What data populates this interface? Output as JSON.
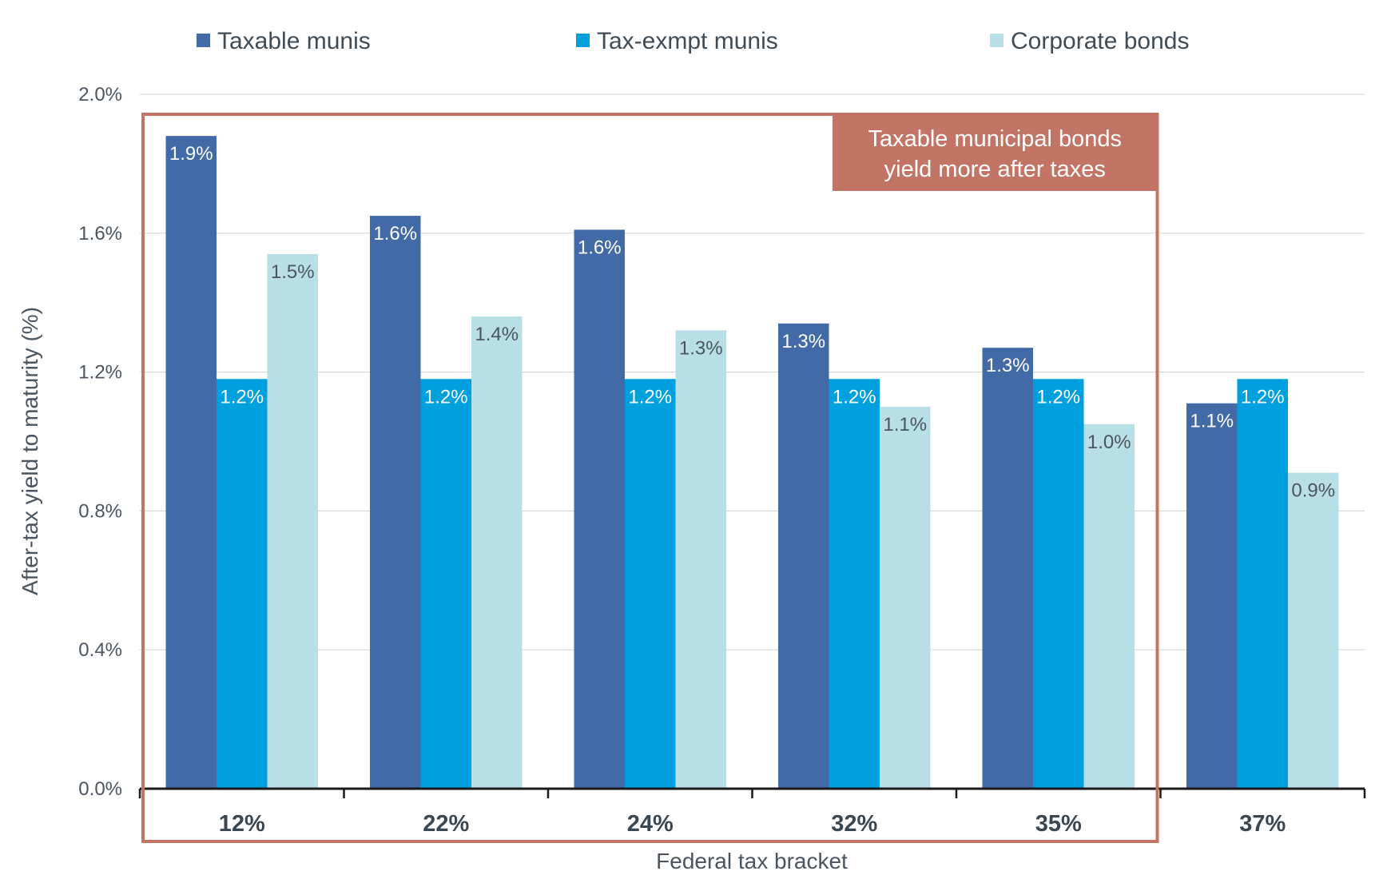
{
  "chart_data": {
    "type": "bar",
    "xlabel": "Federal tax bracket",
    "ylabel": "After-tax yield to maturity (%)",
    "ylim": [
      0,
      2.0
    ],
    "yticks": [
      "0.0%",
      "0.4%",
      "0.8%",
      "1.2%",
      "1.6%",
      "2.0%"
    ],
    "grid": true,
    "legend": "top",
    "categories": [
      "12%",
      "22%",
      "24%",
      "32%",
      "35%",
      "37%"
    ],
    "series": [
      {
        "name": "Taxable munis",
        "color": "#416aa6",
        "label_color": "#ffffff",
        "values": [
          1.88,
          1.65,
          1.61,
          1.34,
          1.27,
          1.11
        ],
        "labels": [
          "1.9%",
          "1.6%",
          "1.6%",
          "1.3%",
          "1.3%",
          "1.1%"
        ]
      },
      {
        "name": "Tax-exmpt munis",
        "color": "#00a0df",
        "label_color": "#ffffff",
        "values": [
          1.18,
          1.18,
          1.18,
          1.18,
          1.18,
          1.18
        ],
        "labels": [
          "1.2%",
          "1.2%",
          "1.2%",
          "1.2%",
          "1.2%",
          "1.2%"
        ]
      },
      {
        "name": "Corporate bonds",
        "color": "#b9dfe6",
        "label_color": "#4a5560",
        "values": [
          1.54,
          1.36,
          1.32,
          1.1,
          1.05,
          0.91
        ],
        "labels": [
          "1.5%",
          "1.4%",
          "1.3%",
          "1.1%",
          "1.0%",
          "0.9%"
        ]
      }
    ],
    "annotation": {
      "lines": [
        "Taxable municipal bonds",
        "yield more after taxes"
      ],
      "box_color": "#c37565",
      "text_color": "#ffffff",
      "highlighted_categories": [
        "12%",
        "22%",
        "24%",
        "32%",
        "35%"
      ]
    }
  }
}
